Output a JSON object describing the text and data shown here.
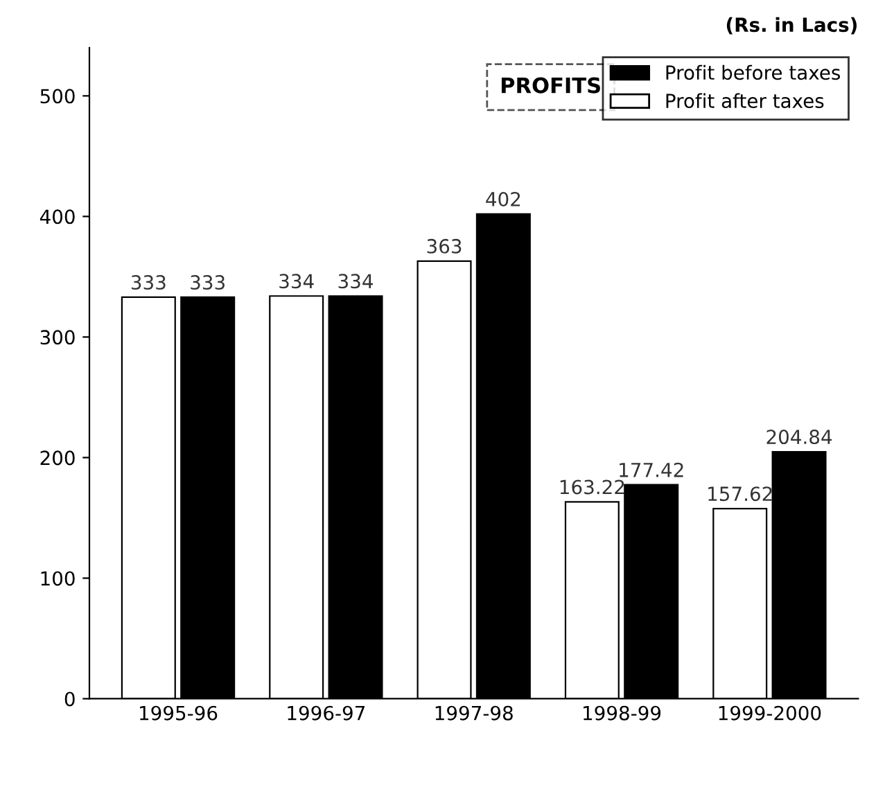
{
  "chart_data": {
    "type": "bar",
    "title": "PROFITS",
    "annotations": [
      "(Rs. in Lacs)"
    ],
    "categories": [
      "1995-96",
      "1996-97",
      "1997-98",
      "1998-99",
      "1999-2000"
    ],
    "series": [
      {
        "name": "Profit after taxes",
        "color": "#ffffff",
        "values": [
          333,
          334,
          363,
          163.22,
          157.62
        ]
      },
      {
        "name": "Profit before taxes",
        "color": "#000000",
        "values": [
          333,
          334,
          402,
          177.42,
          204.84
        ]
      }
    ],
    "ylim": [
      0,
      540
    ],
    "yticks": [
      0,
      100,
      200,
      300,
      400,
      500
    ],
    "grid": false,
    "legend": "top right",
    "data_labels": true
  }
}
